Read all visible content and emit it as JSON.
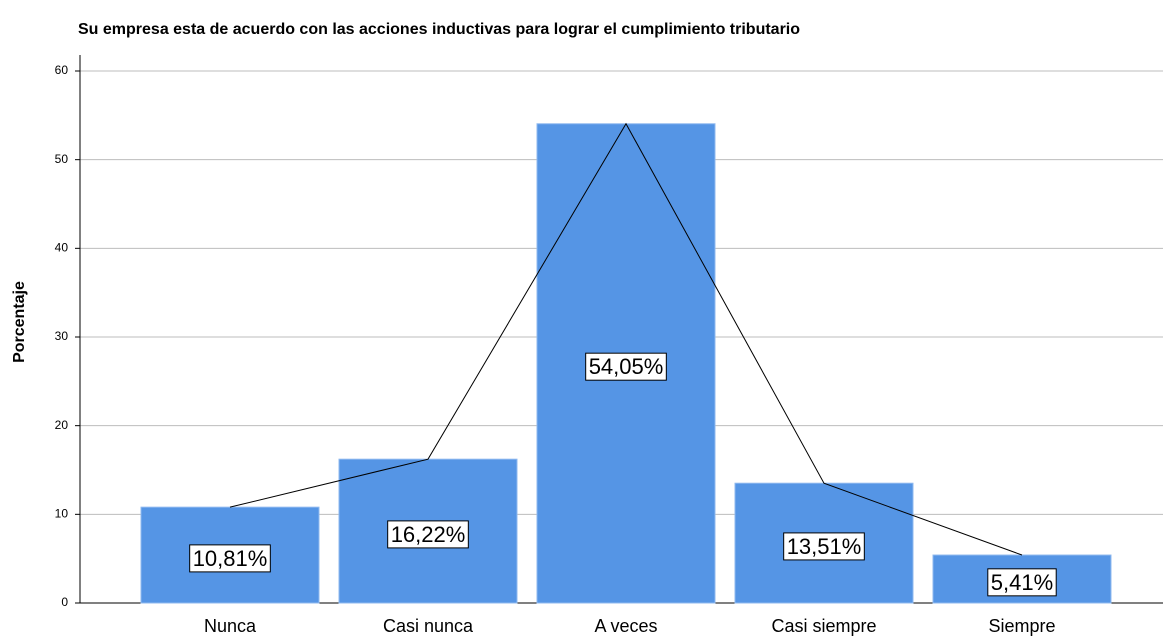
{
  "chart_data": {
    "type": "bar",
    "title": "Su empresa esta de acuerdo con las acciones inductivas para lograr el cumplimiento tributario",
    "y_label": "Porcentaje",
    "categories": [
      "Nunca",
      "Casi nunca",
      "A veces",
      "Casi siempre",
      "Siempre"
    ],
    "values": [
      10.81,
      16.22,
      54.05,
      13.51,
      5.41
    ],
    "value_labels": [
      "10,81%",
      "16,22%",
      "54,05%",
      "13,51%",
      "5,41%"
    ],
    "color": "#5595e5",
    "line_overlay": true,
    "ylim": [
      0,
      60
    ],
    "yticks": [
      0,
      10,
      20,
      30,
      40,
      50,
      60
    ],
    "grid": true
  }
}
